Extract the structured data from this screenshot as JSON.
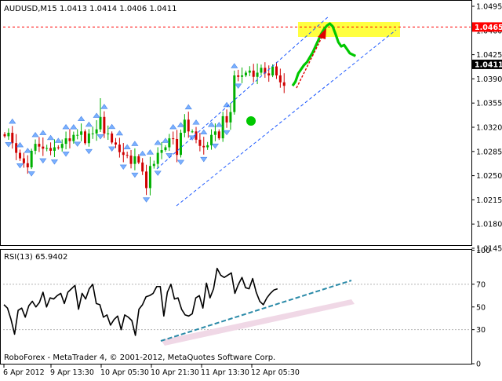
{
  "window": {
    "symbol_header": "AUDUSD,M15  1.0413 1.0414 1.0406 1.0411",
    "watermark": "RoboForex - MetaTrader 4, © 2001-2012, MetaQuotes Software Corp."
  },
  "colors": {
    "background": "#ffffff",
    "axis": "#000000",
    "bull_candle": "#00b000",
    "bear_candle": "#d00000",
    "fractal_arrow": "#7ab0ff",
    "channel_line": "#1e5aff",
    "resistance_line": "#ff0000",
    "resistance_zone": "#ffff40",
    "forecast_line": "#00c800",
    "forecast_arrow": "#e00000",
    "price_label_bg_current": "#000000",
    "price_label_bg_level": "#ff0000",
    "rsi_line": "#000000",
    "rsi_trendline": "#2a8aa8",
    "rsi_trend_shadow": "#f0d8e6",
    "rsi_level_lines": "#b4b4b4"
  },
  "chart_data": [
    {
      "type": "line",
      "title": "AUDUSD,M15  1.0413 1.0414 1.0406 1.0411",
      "price_axis_ticks": [
        "1.0495",
        "1.0460",
        "1.0425",
        "1.0390",
        "1.0355",
        "1.0320",
        "1.0285",
        "1.0250",
        "1.0215",
        "1.0180",
        "1.0145"
      ],
      "ylim": [
        1.0132,
        1.0502
      ],
      "time_axis_ticks": [
        "6 Apr 2012",
        "9 Apr 13:30",
        "10 Apr 05:30",
        "10 Apr 21:30",
        "11 Apr 13:30",
        "12 Apr 05:30"
      ],
      "series": [
        {
          "values": [
            1.0307,
            1.0312,
            1.0297,
            1.0283,
            1.0275,
            1.0268,
            1.0262,
            1.0286,
            1.0296,
            1.0292,
            1.0289,
            1.029,
            1.0286,
            1.0291,
            1.029,
            1.0296,
            1.0304,
            1.03,
            1.0309,
            1.0309,
            1.0314,
            1.0297,
            1.0311,
            1.0311,
            1.0317,
            1.0335,
            1.0311,
            1.0311,
            1.0298,
            1.0295,
            1.0284,
            1.028,
            1.0279,
            1.0267,
            1.0278,
            1.0269,
            1.0256,
            1.0232,
            1.0264,
            1.0267,
            1.0283,
            1.0287,
            1.0291,
            1.0304,
            1.0303,
            1.028,
            1.0312,
            1.0331,
            1.0314,
            1.0314,
            1.0302,
            1.0293,
            1.0291,
            1.0294,
            1.0309,
            1.0314,
            1.0304,
            1.0336,
            1.0327,
            1.0342,
            1.0395,
            1.0393,
            1.0395,
            1.0399,
            1.0402,
            1.0393,
            1.0399,
            1.0406,
            1.0398,
            1.0395,
            1.0408,
            1.0395,
            1.0385,
            1.038
          ],
          "representation": "OHLC candlesticks (close values listed)"
        },
        {
          "name": "forecast",
          "values": [
            1.038,
            1.0386,
            1.0398,
            1.0404,
            1.041,
            1.0414,
            1.0421,
            1.0428,
            1.0437,
            1.0446,
            1.0455,
            1.0462,
            1.0467,
            1.047,
            1.0466,
            1.0455,
            1.0443,
            1.0437,
            1.0439,
            1.0433,
            1.0427,
            1.0425,
            1.0423
          ]
        }
      ],
      "horizontal_level": 1.0465,
      "price_labels": [
        "1.0465",
        "1.0411"
      ],
      "annotations": [
        "rising channel",
        "resistance zone near 1.0465",
        "forecast arrow to resistance"
      ],
      "grid": false,
      "legend": "none"
    },
    {
      "type": "line",
      "title": "RSI(13) 65.9402",
      "axis_ticks": [
        "100",
        "70",
        "50",
        "30",
        "0"
      ],
      "ylim": [
        0,
        100
      ],
      "levels": [
        30,
        70
      ],
      "series": [
        {
          "values": [
            52,
            49,
            39,
            26,
            47,
            49,
            41,
            51,
            55,
            50,
            54,
            63,
            50,
            58,
            57,
            60,
            62,
            53,
            63,
            66,
            69,
            48,
            62,
            57,
            66,
            70,
            53,
            52,
            41,
            43,
            34,
            39,
            42,
            30,
            43,
            41,
            38,
            25,
            48,
            52,
            59,
            60,
            62,
            68,
            68,
            42,
            63,
            70,
            57,
            58,
            48,
            43,
            42,
            44,
            58,
            60,
            49,
            71,
            58,
            66,
            84,
            78,
            76,
            78,
            80,
            62,
            70,
            76,
            67,
            66,
            75,
            63,
            55,
            52,
            58,
            62,
            65,
            66
          ]
        }
      ],
      "annotations": [
        "rising support trendline"
      ],
      "grid": false,
      "legend": "none"
    }
  ]
}
